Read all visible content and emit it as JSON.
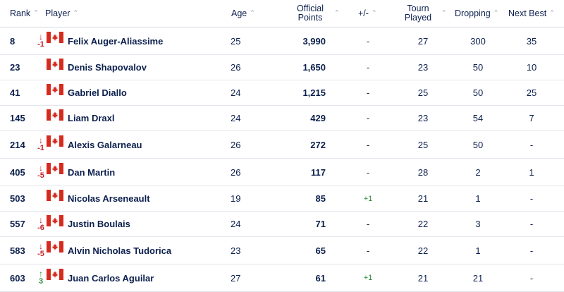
{
  "headers": {
    "rank": "Rank",
    "player": "Player",
    "age": "Age",
    "points_line1": "Official",
    "points_line2": "Points",
    "plusminus": "+/-",
    "tp_line1": "Tourn",
    "tp_line2": "Played",
    "dropping": "Dropping",
    "next_best": "Next Best",
    "caret": "^"
  },
  "rows": [
    {
      "rank": "8",
      "move": "-1",
      "dir": "down",
      "name": "Felix Auger-Aliassime",
      "age": "25",
      "points": "3,990",
      "pm": "-",
      "tp": "27",
      "drop": "300",
      "nb": "35"
    },
    {
      "rank": "23",
      "move": "",
      "dir": "none",
      "name": "Denis Shapovalov",
      "age": "26",
      "points": "1,650",
      "pm": "-",
      "tp": "23",
      "drop": "50",
      "nb": "10"
    },
    {
      "rank": "41",
      "move": "",
      "dir": "none",
      "name": "Gabriel Diallo",
      "age": "24",
      "points": "1,215",
      "pm": "-",
      "tp": "25",
      "drop": "50",
      "nb": "25"
    },
    {
      "rank": "145",
      "move": "",
      "dir": "none",
      "name": "Liam Draxl",
      "age": "24",
      "points": "429",
      "pm": "-",
      "tp": "23",
      "drop": "54",
      "nb": "7"
    },
    {
      "rank": "214",
      "move": "-1",
      "dir": "down",
      "name": "Alexis Galarneau",
      "age": "26",
      "points": "272",
      "pm": "-",
      "tp": "25",
      "drop": "50",
      "nb": "-"
    },
    {
      "rank": "405",
      "move": "-5",
      "dir": "down",
      "name": "Dan Martin",
      "age": "26",
      "points": "117",
      "pm": "-",
      "tp": "28",
      "drop": "2",
      "nb": "1"
    },
    {
      "rank": "503",
      "move": "",
      "dir": "none",
      "name": "Nicolas Arseneault",
      "age": "19",
      "points": "85",
      "pm": "+1",
      "tp": "21",
      "drop": "1",
      "nb": "-"
    },
    {
      "rank": "557",
      "move": "-6",
      "dir": "down",
      "name": "Justin Boulais",
      "age": "24",
      "points": "71",
      "pm": "-",
      "tp": "22",
      "drop": "3",
      "nb": "-"
    },
    {
      "rank": "583",
      "move": "-5",
      "dir": "down",
      "name": "Alvin Nicholas Tudorica",
      "age": "23",
      "points": "65",
      "pm": "-",
      "tp": "22",
      "drop": "1",
      "nb": "-"
    },
    {
      "rank": "603",
      "move": "3",
      "dir": "up",
      "name": "Juan Carlos Aguilar",
      "age": "27",
      "points": "61",
      "pm": "+1",
      "tp": "21",
      "drop": "21",
      "nb": "-"
    }
  ],
  "flag_icon": "canada-flag-icon",
  "colors": {
    "text": "#0b1f4d",
    "down": "#c0262e",
    "up": "#2e8b3a",
    "flag_red": "#d52b1e"
  }
}
